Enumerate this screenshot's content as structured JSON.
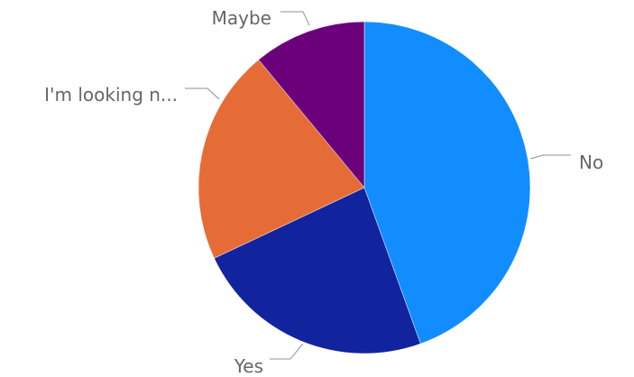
{
  "chart_data": {
    "type": "pie",
    "categories": [
      "No",
      "Yes",
      "I'm looking n...",
      "Maybe"
    ],
    "values": [
      44.5,
      23.5,
      21.0,
      11.0
    ],
    "colors": [
      "#118dff",
      "#12239e",
      "#e66c37",
      "#6b007b"
    ],
    "start_angle_deg": 0,
    "direction": "clockwise",
    "labels_outside": true,
    "legend": "none"
  }
}
